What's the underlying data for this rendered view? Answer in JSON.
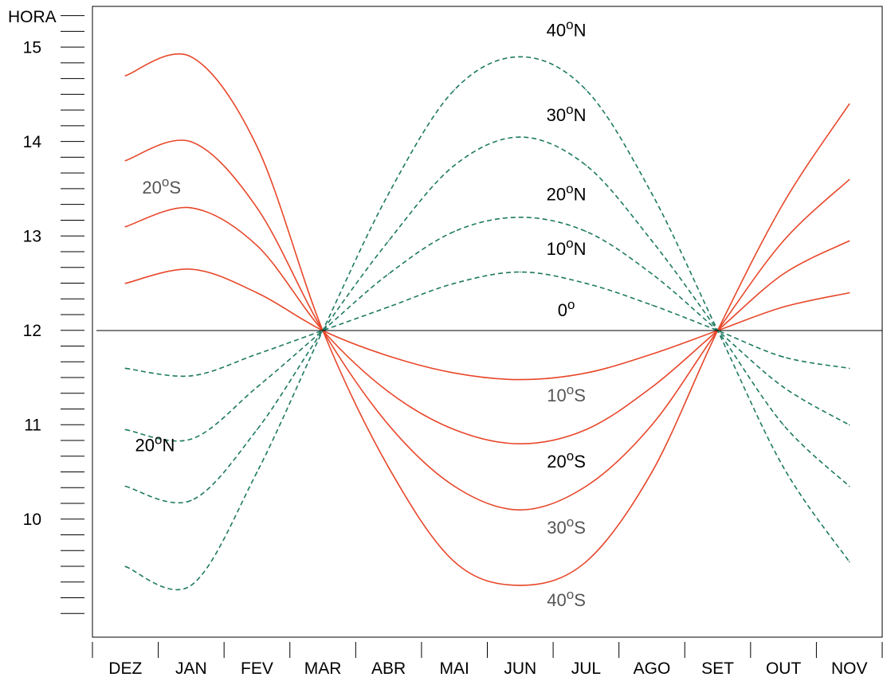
{
  "chart_data": {
    "type": "line",
    "ylabel": "HORA",
    "ylim": [
      9.0,
      15.5
    ],
    "yticks": [
      10,
      11,
      12,
      13,
      14,
      15
    ],
    "ytick_labels": [
      "10",
      "11",
      "12",
      "13",
      "14",
      "15"
    ],
    "yminor_step": 0.1667,
    "x": [
      "DEZ",
      "JAN",
      "FEV",
      "MAR",
      "ABR",
      "MAI",
      "JUN",
      "JUL",
      "AGO",
      "SET",
      "OUT",
      "NOV"
    ],
    "grid": false,
    "colors": {
      "south": "#e8472a",
      "north": "#1e7a62",
      "equator": "#000000",
      "text_dark": "#000000",
      "text_gray": "#555555"
    },
    "series": [
      {
        "group": "south",
        "style": "solid",
        "y": [
          12.5,
          12.65,
          12.4,
          12.0,
          11.73,
          11.55,
          11.48,
          11.55,
          11.75,
          12.0,
          12.25,
          12.4
        ]
      },
      {
        "group": "south",
        "style": "solid",
        "y": [
          13.1,
          13.3,
          12.9,
          12.0,
          11.35,
          10.95,
          10.8,
          10.95,
          11.4,
          12.0,
          12.6,
          12.95
        ]
      },
      {
        "group": "south",
        "style": "solid",
        "y": [
          13.8,
          14.0,
          13.3,
          12.0,
          11.0,
          10.35,
          10.1,
          10.35,
          11.0,
          12.0,
          12.95,
          13.6
        ]
      },
      {
        "group": "south",
        "style": "solid",
        "y": [
          14.7,
          14.9,
          13.95,
          12.0,
          10.55,
          9.55,
          9.3,
          9.55,
          10.5,
          12.0,
          13.35,
          14.4
        ]
      },
      {
        "group": "north",
        "style": "dashed",
        "y": [
          11.6,
          11.52,
          11.75,
          12.0,
          12.25,
          12.5,
          12.62,
          12.5,
          12.27,
          12.0,
          11.72,
          11.6
        ]
      },
      {
        "group": "north",
        "style": "dashed",
        "y": [
          10.95,
          10.85,
          11.4,
          12.0,
          12.6,
          13.05,
          13.2,
          13.05,
          12.6,
          12.0,
          11.4,
          11.0
        ]
      },
      {
        "group": "north",
        "style": "dashed",
        "y": [
          10.35,
          10.2,
          10.95,
          12.0,
          12.95,
          13.75,
          14.05,
          13.75,
          12.95,
          12.0,
          11.0,
          10.35
        ]
      },
      {
        "group": "north",
        "style": "dashed",
        "y": [
          9.5,
          9.3,
          10.5,
          12.0,
          13.45,
          14.55,
          14.9,
          14.55,
          13.45,
          12.0,
          10.55,
          9.55
        ]
      },
      {
        "group": "equator",
        "style": "solid",
        "y": [
          12.0,
          12.0,
          12.0,
          12.0,
          12.0,
          12.0,
          12.0,
          12.0,
          12.0,
          12.0,
          12.0,
          12.0
        ]
      }
    ],
    "annotations": [
      {
        "base": "40",
        "sup": "o",
        "suffix": "N",
        "x": 6.7,
        "y": 15.12,
        "tone": "dark"
      },
      {
        "base": "30",
        "sup": "o",
        "suffix": "N",
        "x": 6.7,
        "y": 14.22,
        "tone": "dark"
      },
      {
        "base": "20",
        "sup": "o",
        "suffix": "N",
        "x": 6.7,
        "y": 13.38,
        "tone": "dark"
      },
      {
        "base": "10",
        "sup": "o",
        "suffix": "N",
        "x": 6.7,
        "y": 12.8,
        "tone": "dark"
      },
      {
        "base": "0",
        "sup": "o",
        "suffix": "",
        "x": 6.7,
        "y": 12.15,
        "tone": "dark"
      },
      {
        "base": "10",
        "sup": "o",
        "suffix": "S",
        "x": 6.7,
        "y": 11.25,
        "tone": "gray"
      },
      {
        "base": "20",
        "sup": "o",
        "suffix": "S",
        "x": 6.7,
        "y": 10.55,
        "tone": "dark"
      },
      {
        "base": "30",
        "sup": "o",
        "suffix": "S",
        "x": 6.7,
        "y": 9.85,
        "tone": "gray"
      },
      {
        "base": "40",
        "sup": "o",
        "suffix": "S",
        "x": 6.7,
        "y": 9.08,
        "tone": "gray"
      },
      {
        "base": "20",
        "sup": "o",
        "suffix": "S",
        "x": 0.55,
        "y": 13.45,
        "tone": "gray"
      },
      {
        "base": "20",
        "sup": "o",
        "suffix": "N",
        "x": 0.45,
        "y": 10.72,
        "tone": "dark"
      }
    ]
  }
}
